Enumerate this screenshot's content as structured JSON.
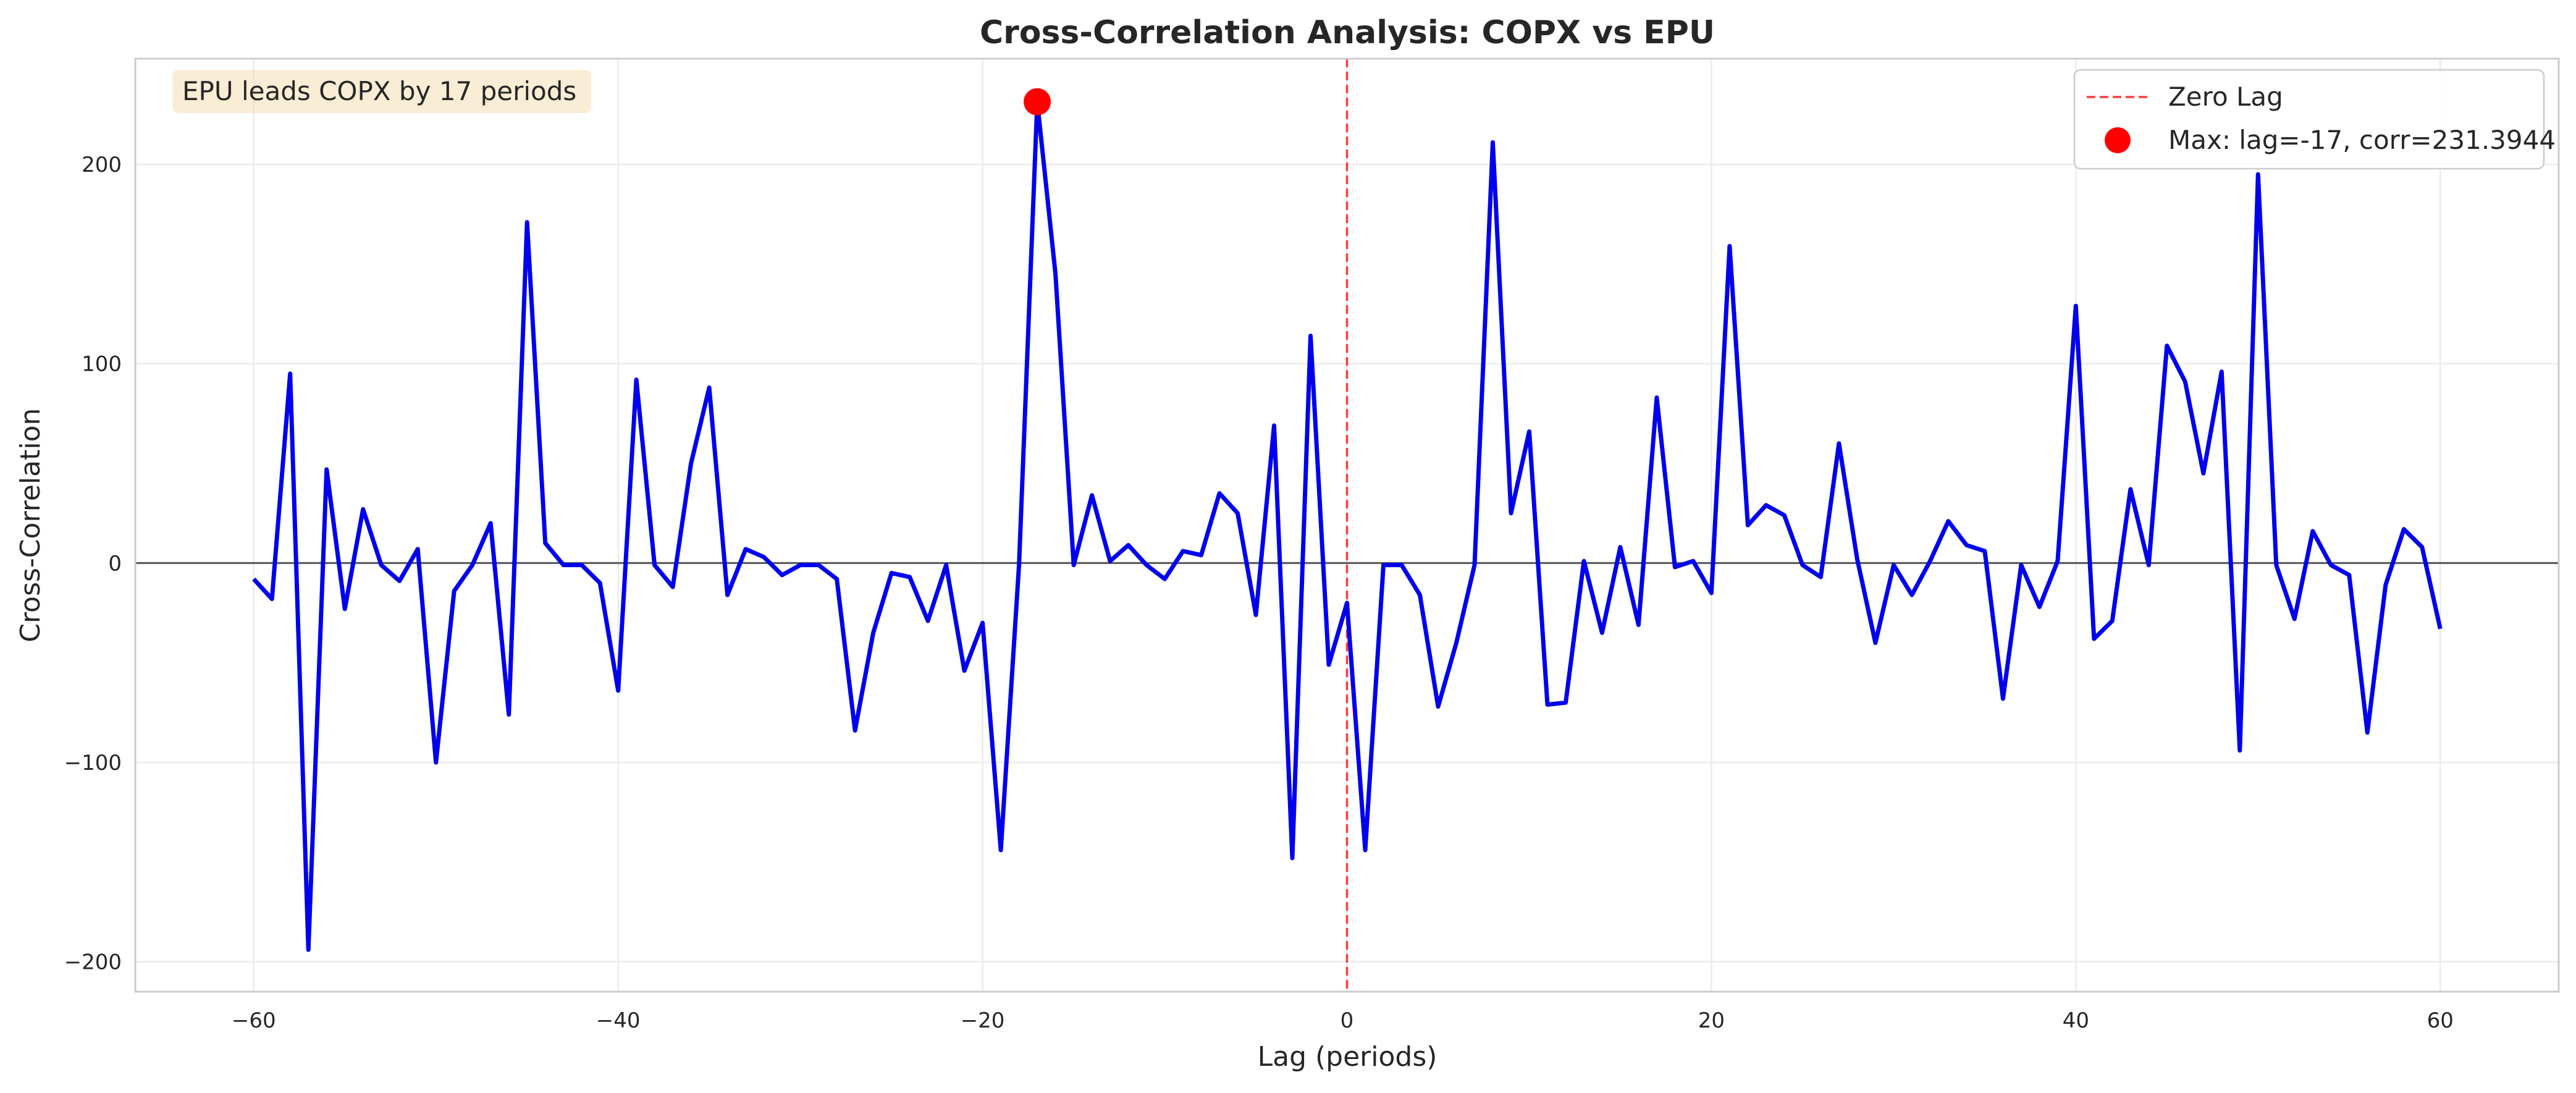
{
  "chart_data": {
    "type": "line",
    "title": "Cross-Correlation Analysis: COPX vs EPU",
    "xlabel": "Lag (periods)",
    "ylabel": "Cross-Correlation",
    "xlim": [
      -66.5,
      66.5
    ],
    "ylim": [
      -215,
      253
    ],
    "xticks": [
      -60,
      -40,
      -20,
      0,
      20,
      40,
      60
    ],
    "yticks": [
      -200,
      -100,
      0,
      100,
      200
    ],
    "xtick_labels": [
      "−60",
      "−40",
      "−20",
      "0",
      "20",
      "40",
      "60"
    ],
    "ytick_labels": [
      "−200",
      "−100",
      "0",
      "100",
      "200"
    ],
    "grid": true,
    "legend_position": "top-right",
    "annotation": "EPU leads COPX by 17 periods",
    "zero_lag_line": {
      "x": 0,
      "label": "Zero Lag",
      "color": "#ff0000"
    },
    "max_point": {
      "x": -17,
      "y": 231.3944,
      "label": "Max: lag=-17, corr=231.3944",
      "color": "#ff0000"
    },
    "series": [
      {
        "color": "#0000ee",
        "x": [
          -60,
          -59,
          -58,
          -57,
          -56,
          -55,
          -54,
          -53,
          -52,
          -51,
          -50,
          -49,
          -48,
          -47,
          -46,
          -45,
          -44,
          -43,
          -42,
          -41,
          -40,
          -39,
          -38,
          -37,
          -36,
          -35,
          -34,
          -33,
          -32,
          -31,
          -30,
          -29,
          -28,
          -27,
          -26,
          -25,
          -24,
          -23,
          -22,
          -21,
          -20,
          -19,
          -18,
          -17,
          -16,
          -15,
          -14,
          -13,
          -12,
          -11,
          -10,
          -9,
          -8,
          -7,
          -6,
          -5,
          -4,
          -3,
          -2,
          -1,
          0,
          1,
          2,
          3,
          4,
          5,
          6,
          7,
          8,
          9,
          10,
          11,
          12,
          13,
          14,
          15,
          16,
          17,
          18,
          19,
          20,
          21,
          22,
          23,
          24,
          25,
          26,
          27,
          28,
          29,
          30,
          31,
          32,
          33,
          34,
          35,
          36,
          37,
          38,
          39,
          40,
          41,
          42,
          43,
          44,
          45,
          46,
          47,
          48,
          49,
          50,
          51,
          52,
          53,
          54,
          55,
          56,
          57,
          58,
          59,
          60
        ],
        "y": [
          -8,
          -18,
          95,
          -194,
          47,
          -23,
          27,
          -1,
          -9,
          7,
          -100,
          -14,
          -1,
          20,
          -76,
          171,
          10,
          -1,
          -1,
          -10,
          -64,
          92,
          -1,
          -12,
          50,
          88,
          -16,
          7,
          3,
          -6,
          -1,
          -1,
          -8,
          -84,
          -35,
          -5,
          -7,
          -29,
          -1,
          -54,
          -30,
          -144,
          -1,
          231.3944,
          145,
          -1,
          34,
          1,
          9,
          -1,
          -8,
          6,
          4,
          35,
          25,
          -26,
          69,
          -148,
          114,
          -51,
          -20,
          -144,
          -1,
          -1,
          -16,
          -72,
          -40,
          -1,
          211,
          25,
          66,
          -71,
          -70,
          1,
          -35,
          8,
          -31,
          83,
          -2,
          1,
          -15,
          159,
          19,
          29,
          24,
          -1,
          -7,
          60,
          2,
          -40,
          -1,
          -16,
          1,
          21,
          9,
          6,
          -68,
          -1,
          -22,
          1,
          129,
          -38,
          -29,
          37,
          -1,
          109,
          91,
          45,
          96,
          -94,
          195,
          -1,
          -28,
          16,
          -1,
          -6,
          -85,
          -11,
          17,
          8,
          -33
        ]
      }
    ]
  }
}
